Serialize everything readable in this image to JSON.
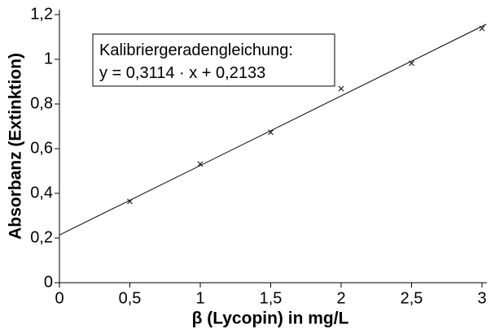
{
  "chart_data": {
    "type": "scatter",
    "x_label": "β (Lycopin) in mg/L",
    "y_label": "Absorbanz (Extinktion)",
    "annotation": "Kalibriergeradengleichung:",
    "fit": {
      "slope": 0.3114,
      "intercept": 0.2133,
      "label": "y = 0,3114 · x + 0,2133"
    },
    "x": [
      0.5,
      1,
      1.5,
      2,
      2.5,
      3
    ],
    "values": [
      0.364,
      0.531,
      0.673,
      0.869,
      0.982,
      1.138
    ],
    "color": "#222222",
    "xlim": [
      0,
      3.03
    ],
    "ylim": [
      0,
      1.2
    ],
    "xticks": [
      0,
      {
        "value": 0.5,
        "label": "0,5"
      },
      1,
      {
        "value": 1.5,
        "label": "1,5"
      },
      2,
      {
        "value": 2.5,
        "label": "2,5"
      },
      3
    ],
    "yticks": [
      0,
      {
        "value": 0.2,
        "label": "0,2"
      },
      {
        "value": 0.4,
        "label": "0,4"
      },
      {
        "value": 0.6,
        "label": "0,6"
      },
      {
        "value": 0.8,
        "label": "0,8"
      },
      1,
      {
        "value": 1.2,
        "label": "1,2"
      }
    ]
  }
}
